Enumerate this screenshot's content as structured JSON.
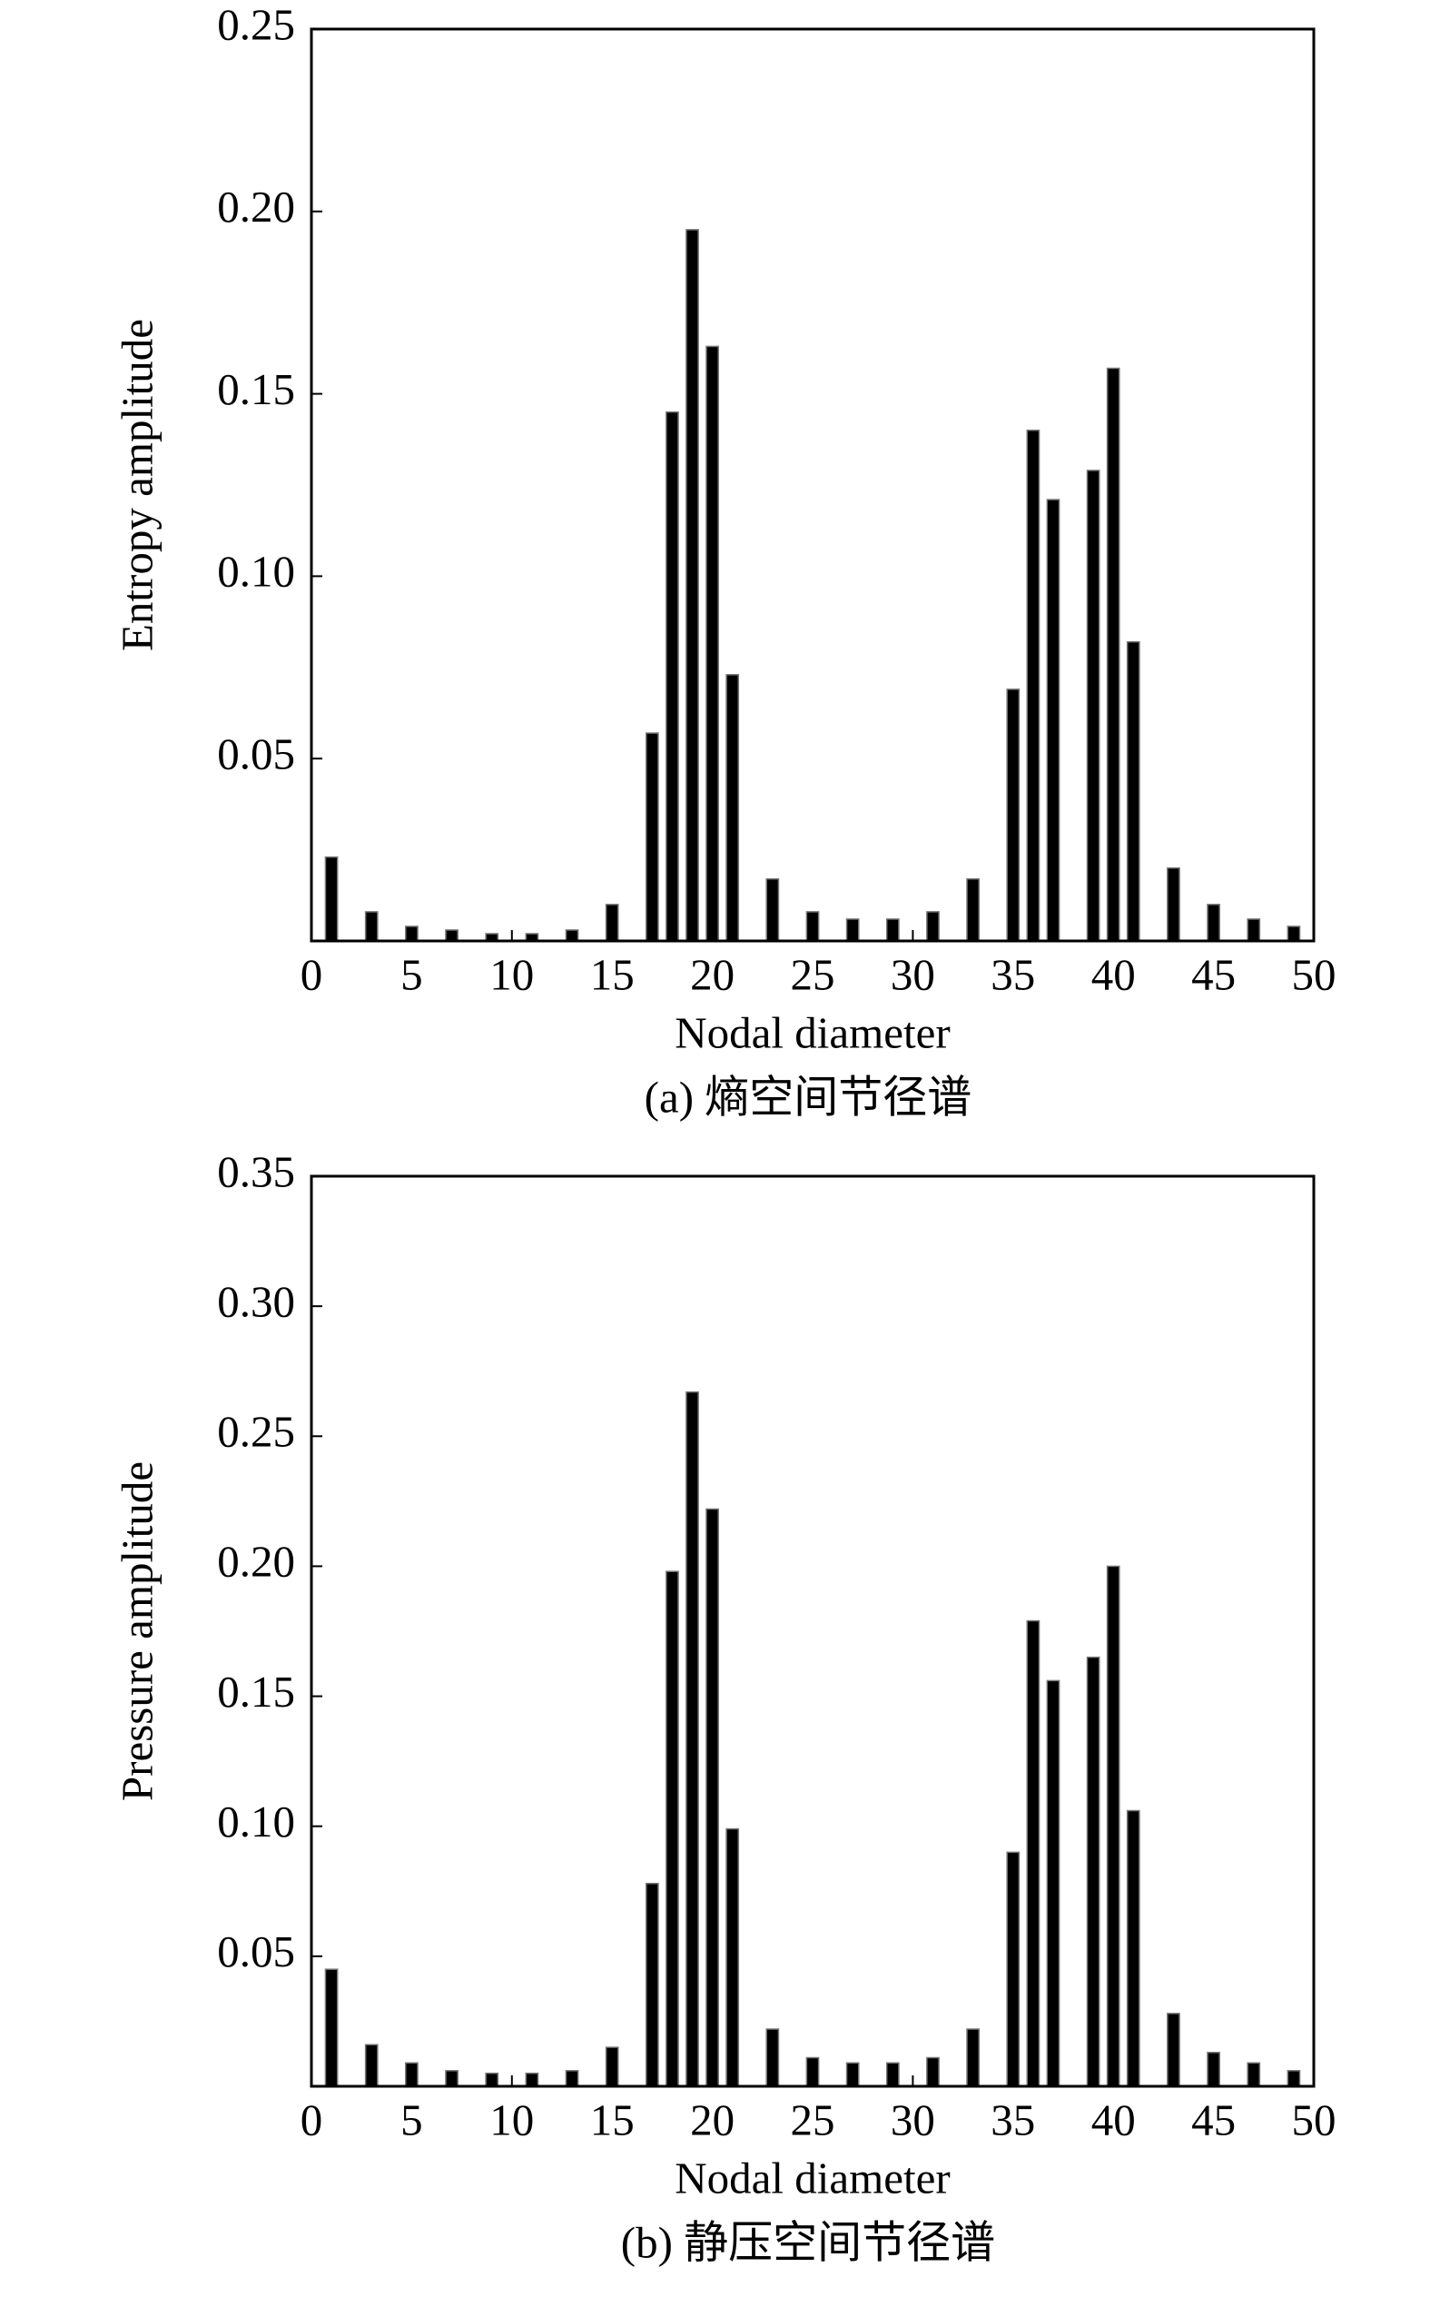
{
  "chart_data": [
    {
      "type": "bar",
      "title": "(a) 熵空间节径谱",
      "x_label": "Nodal diameter",
      "y_label": "Entropy amplitude",
      "x": [
        1,
        3,
        5,
        7,
        9,
        11,
        13,
        15,
        17,
        18,
        19,
        20,
        21,
        23,
        25,
        27,
        29,
        31,
        33,
        35,
        36,
        37,
        39,
        40,
        41,
        43,
        45,
        47,
        49
      ],
      "values": [
        0.023,
        0.008,
        0.004,
        0.003,
        0.002,
        0.002,
        0.003,
        0.01,
        0.057,
        0.145,
        0.195,
        0.163,
        0.073,
        0.017,
        0.008,
        0.006,
        0.006,
        0.008,
        0.017,
        0.069,
        0.14,
        0.121,
        0.129,
        0.157,
        0.082,
        0.02,
        0.01,
        0.006,
        0.004
      ],
      "color": "#000000",
      "xlim": [
        0,
        50
      ],
      "ylim": [
        0,
        0.25
      ],
      "xticks": [
        0,
        5,
        10,
        15,
        20,
        25,
        30,
        35,
        40,
        45,
        50
      ],
      "yticks": [
        {
          "value": 0.05,
          "label": "0.05"
        },
        {
          "value": 0.1,
          "label": "0.10"
        },
        {
          "value": 0.15,
          "label": "0.15"
        },
        {
          "value": 0.2,
          "label": "0.20"
        },
        {
          "value": 0.25,
          "label": "0.25"
        }
      ]
    },
    {
      "type": "bar",
      "title": "(b) 静压空间节径谱",
      "x_label": "Nodal diameter",
      "y_label": "Pressure amplitude",
      "x": [
        1,
        3,
        5,
        7,
        9,
        11,
        13,
        15,
        17,
        18,
        19,
        20,
        21,
        23,
        25,
        27,
        29,
        31,
        33,
        35,
        36,
        37,
        39,
        40,
        41,
        43,
        45,
        47,
        49
      ],
      "values": [
        0.045,
        0.016,
        0.009,
        0.006,
        0.005,
        0.005,
        0.006,
        0.015,
        0.078,
        0.198,
        0.267,
        0.222,
        0.099,
        0.022,
        0.011,
        0.009,
        0.009,
        0.011,
        0.022,
        0.09,
        0.179,
        0.156,
        0.165,
        0.2,
        0.106,
        0.028,
        0.013,
        0.009,
        0.006
      ],
      "color": "#000000",
      "xlim": [
        0,
        50
      ],
      "ylim": [
        0,
        0.35
      ],
      "xticks": [
        0,
        5,
        10,
        15,
        20,
        25,
        30,
        35,
        40,
        45,
        50
      ],
      "yticks": [
        {
          "value": 0.05,
          "label": "0.05"
        },
        {
          "value": 0.1,
          "label": "0.10"
        },
        {
          "value": 0.15,
          "label": "0.15"
        },
        {
          "value": 0.2,
          "label": "0.20"
        },
        {
          "value": 0.25,
          "label": "0.25"
        },
        {
          "value": 0.3,
          "label": "0.30"
        },
        {
          "value": 0.35,
          "label": "0.35"
        }
      ]
    }
  ]
}
